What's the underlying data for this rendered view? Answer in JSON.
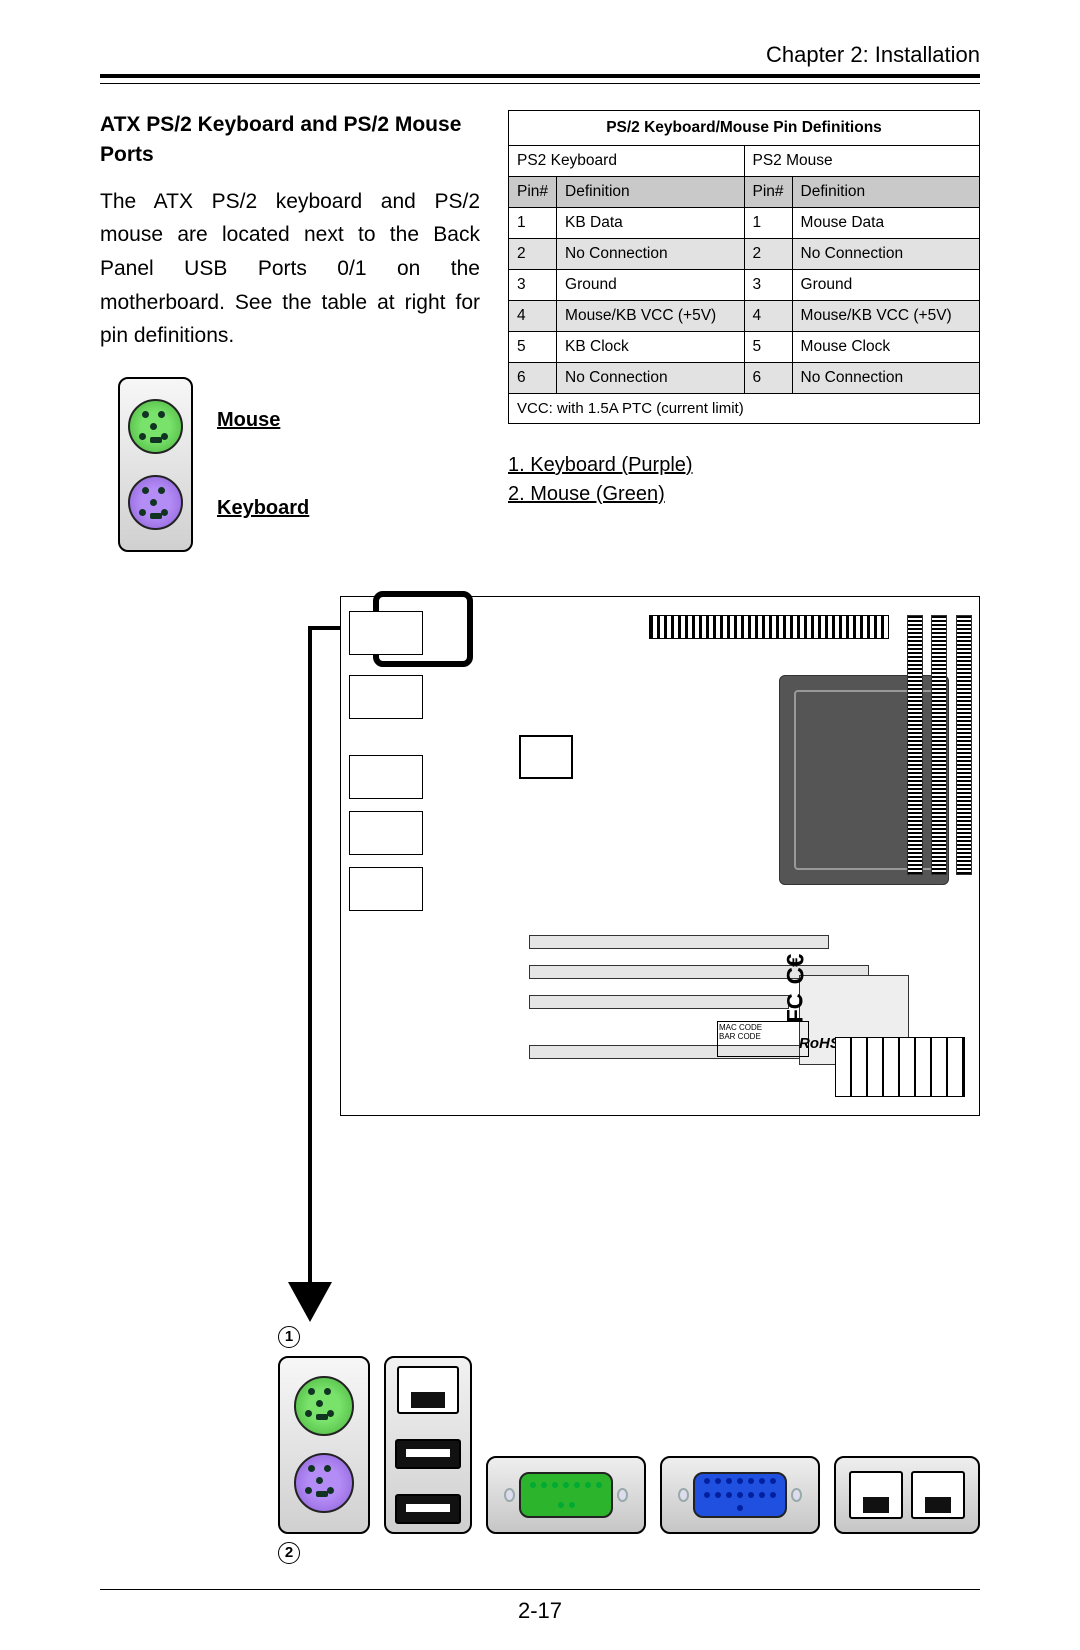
{
  "header": {
    "chapter": "Chapter 2: Installation"
  },
  "section": {
    "title": "ATX PS/2 Keyboard and PS/2 Mouse Ports",
    "body": "The ATX PS/2 keyboard and PS/2 mouse are located next to the Back Panel USB Ports 0/1 on the motherboard. See the table at right for pin definitions.",
    "mouse_label": "Mouse",
    "keyboard_label": "Keyboard"
  },
  "pin_table": {
    "title": "PS/2 Keyboard/Mouse Pin Definitions",
    "left_header": "PS2 Keyboard",
    "right_header": "PS2 Mouse",
    "col_pin": "Pin#",
    "col_def": "Definition",
    "rows": [
      {
        "p": "1",
        "kd": "KB Data",
        "mp": "1",
        "md": "Mouse Data",
        "shade": false
      },
      {
        "p": "2",
        "kd": "No Connection",
        "mp": "2",
        "md": "No Connection",
        "shade": true
      },
      {
        "p": "3",
        "kd": "Ground",
        "mp": "3",
        "md": "Ground",
        "shade": false
      },
      {
        "p": "4",
        "kd": "Mouse/KB VCC (+5V)",
        "mp": "4",
        "md": "Mouse/KB VCC (+5V)",
        "shade": true
      },
      {
        "p": "5",
        "kd": "KB Clock",
        "mp": "5",
        "md": "Mouse Clock",
        "shade": false
      },
      {
        "p": "6",
        "kd": "No Connection",
        "mp": "6",
        "md": "No Connection",
        "shade": true
      }
    ],
    "footnote": "VCC: with 1.5A PTC (current limit)"
  },
  "legend": {
    "item1": "1. Keyboard (Purple)",
    "item2": "2. Mouse (Green)"
  },
  "board": {
    "ce": "C€",
    "fc": "FC",
    "rohs": "RoHS",
    "mac": "MAC CODE",
    "bar": "BAR CODE"
  },
  "markers": {
    "one": "1",
    "two": "2"
  },
  "page": "2-17",
  "colors": {
    "mouse_port": "#5ecf4f",
    "keyboard_port": "#9a6fe0",
    "vga_green": "#2db42d",
    "vga_blue": "#2050e0",
    "table_header_bg": "#c9c9c9",
    "table_shade_bg": "#e2e2e2"
  }
}
